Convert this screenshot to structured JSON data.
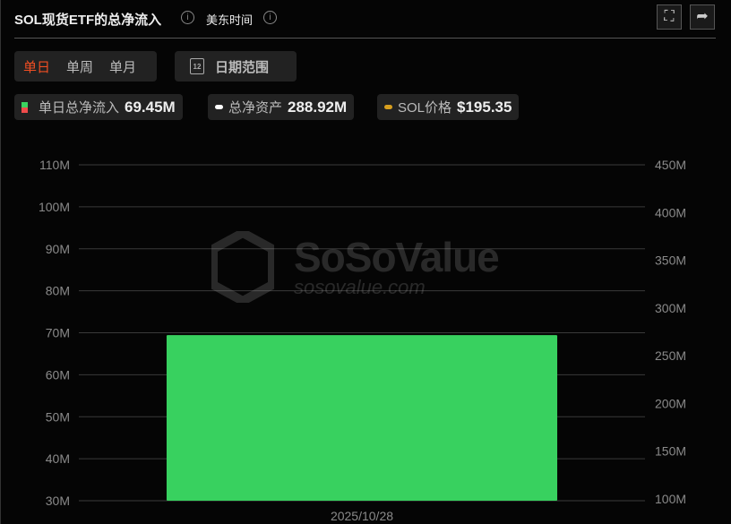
{
  "header": {
    "title": "SOL现货ETF的总净流入",
    "timezone": "美东时间",
    "info_icon": "i",
    "fullscreen_icon": "expand-icon",
    "share_icon": "share-icon"
  },
  "period_tabs": [
    {
      "label": "单日",
      "active": true
    },
    {
      "label": "单周",
      "active": false
    },
    {
      "label": "单月",
      "active": false
    }
  ],
  "date_range": {
    "label": "日期范围",
    "calendar_day": "12"
  },
  "legend": [
    {
      "label": "单日总净流入",
      "value": "69.45M",
      "color": "#3ad25f"
    },
    {
      "label": "总净资产",
      "value": "288.92M",
      "color": "#ffffff"
    },
    {
      "label": "SOL价格",
      "value": "$195.35",
      "color": "#d69e1e"
    }
  ],
  "watermark": {
    "name": "SoSoValue",
    "url": "sosovalue.com"
  },
  "chart_data": {
    "type": "bar",
    "categories": [
      "2025/10/28"
    ],
    "series": [
      {
        "name": "单日总净流入",
        "values": [
          69.45
        ],
        "color": "#38d15f"
      }
    ],
    "y_left": {
      "ticks": [
        "30M",
        "40M",
        "50M",
        "60M",
        "70M",
        "80M",
        "90M",
        "100M",
        "110M"
      ],
      "range": [
        30,
        110
      ]
    },
    "y_right": {
      "ticks": [
        "100M",
        "150M",
        "200M",
        "250M",
        "300M",
        "350M",
        "400M",
        "450M"
      ],
      "range": [
        100,
        450
      ]
    },
    "grid": true
  }
}
